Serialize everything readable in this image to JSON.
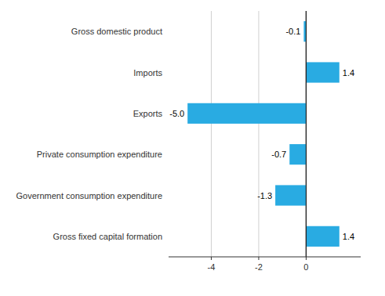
{
  "chart_data": {
    "type": "bar",
    "orientation": "horizontal",
    "categories": [
      "Gross fixed capital formation",
      "Government consumption expenditure",
      "Private consumption expenditure",
      "Exports",
      "Imports",
      "Gross domestic product"
    ],
    "values": [
      1.4,
      -1.3,
      -0.7,
      -5.0,
      1.4,
      -0.1
    ],
    "value_labels": [
      "1.4",
      "-1.3",
      "-0.7",
      "-5.0",
      "1.4",
      "-0.1"
    ],
    "color": "#29abe2",
    "xlim": [
      -5.8,
      2.3
    ],
    "xticks": [
      -4,
      -2,
      0
    ],
    "grid": true,
    "data_labels": true
  }
}
